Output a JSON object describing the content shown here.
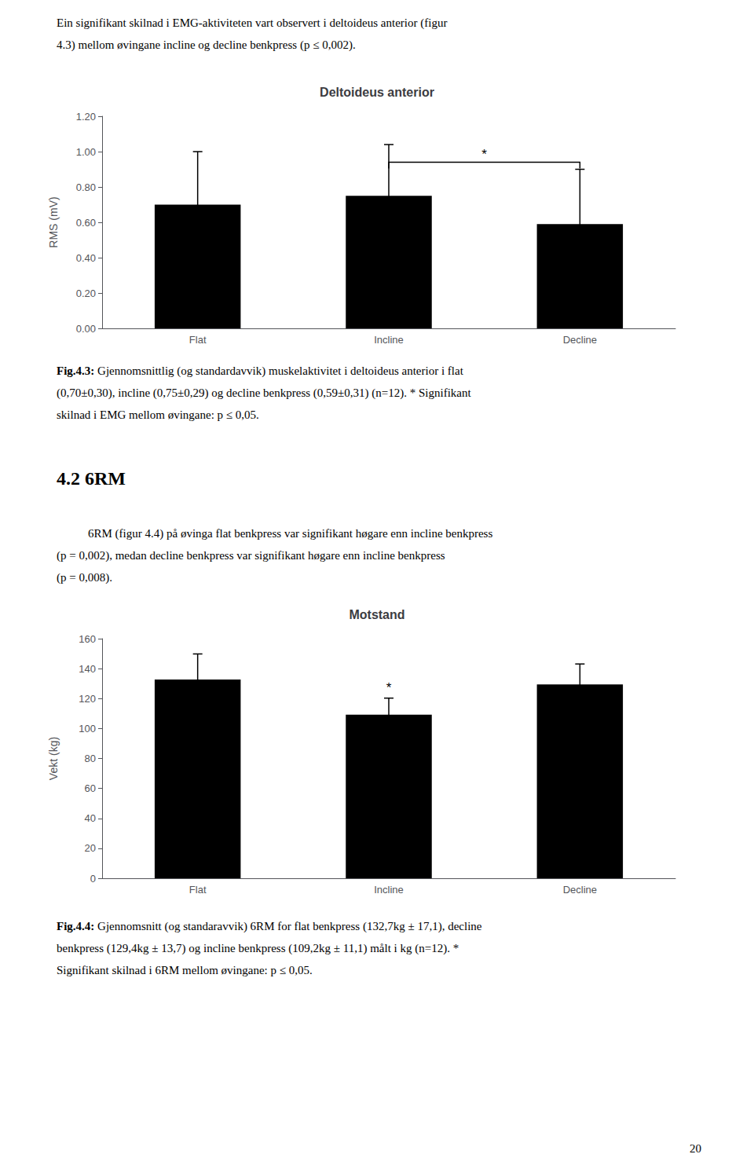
{
  "chart_data": [
    {
      "type": "bar",
      "title": "Deltoideus anterior",
      "categories": [
        "Flat",
        "Incline",
        "Decline"
      ],
      "values": [
        0.7,
        0.75,
        0.59
      ],
      "errors": [
        0.3,
        0.29,
        0.31
      ],
      "color": "#000000",
      "ylabel": "RMS (mV)",
      "ylim": [
        0.0,
        1.2
      ],
      "yticks": [
        {
          "value": 0.0,
          "label": "0.00"
        },
        {
          "value": 0.2,
          "label": "0.20"
        },
        {
          "value": 0.4,
          "label": "0.40"
        },
        {
          "value": 0.6,
          "label": "0.60"
        },
        {
          "value": 0.8,
          "label": "0.80"
        },
        {
          "value": 1.0,
          "label": "1.00"
        },
        {
          "value": 1.2,
          "label": "1.20"
        }
      ],
      "grid": false,
      "annotations": [
        {
          "text": "*",
          "x": [
            "Incline",
            "Decline"
          ],
          "y": 0.94
        }
      ]
    },
    {
      "type": "bar",
      "title": "Motstand",
      "categories": [
        "Flat",
        "Incline",
        "Decline"
      ],
      "values": [
        132.7,
        109.2,
        129.4
      ],
      "errors": [
        17.1,
        11.1,
        13.7
      ],
      "color": "#000000",
      "ylabel": "Vekt (kg)",
      "ylim": [
        0,
        160
      ],
      "yticks": [
        0,
        20,
        40,
        60,
        80,
        100,
        120,
        140,
        160
      ],
      "grid": false,
      "annotations": [
        {
          "text": "*",
          "x": "Incline"
        }
      ]
    }
  ],
  "page_text": {
    "intro": [
      "Ein signifikant skilnad i EMG-aktiviteten vart observert i deltoideus anterior (figur",
      "4.3) mellom øvingane incline og decline benkpress (p ≤ 0,002)."
    ],
    "caption1": {
      "label": "Fig.4.3:",
      "lines": [
        "Gjennomsnittlig (og standardavvik) muskelaktivitet i deltoideus anterior i flat",
        "(0,70±0,30), incline (0,75±0,29) og decline benkpress (0,59±0,31) (n=12). * Signifikant",
        "skilnad i EMG mellom øvingane: p ≤ 0,05."
      ]
    },
    "header": "4.2 6RM",
    "middle": [
      "6RM (figur 4.4) på øvinga flat benkpress var signifikant høgare enn incline benkpress",
      "(p = 0,002), medan decline benkpress var signifikant høgare enn incline benkpress",
      "(p = 0,008)."
    ],
    "caption2": {
      "label": "Fig.4.4:",
      "lines": [
        "Gjennomsnitt (og standaravvik) 6RM for flat benkpress (132,7kg ± 17,1), decline",
        "benkpress (129,4kg ± 13,7) og incline benkpress (109,2kg ± 11,1) målt i kg (n=12). *",
        "Signifikant skilnad i 6RM mellom øvingane: p ≤ 0,05."
      ]
    },
    "page_number": "20"
  }
}
